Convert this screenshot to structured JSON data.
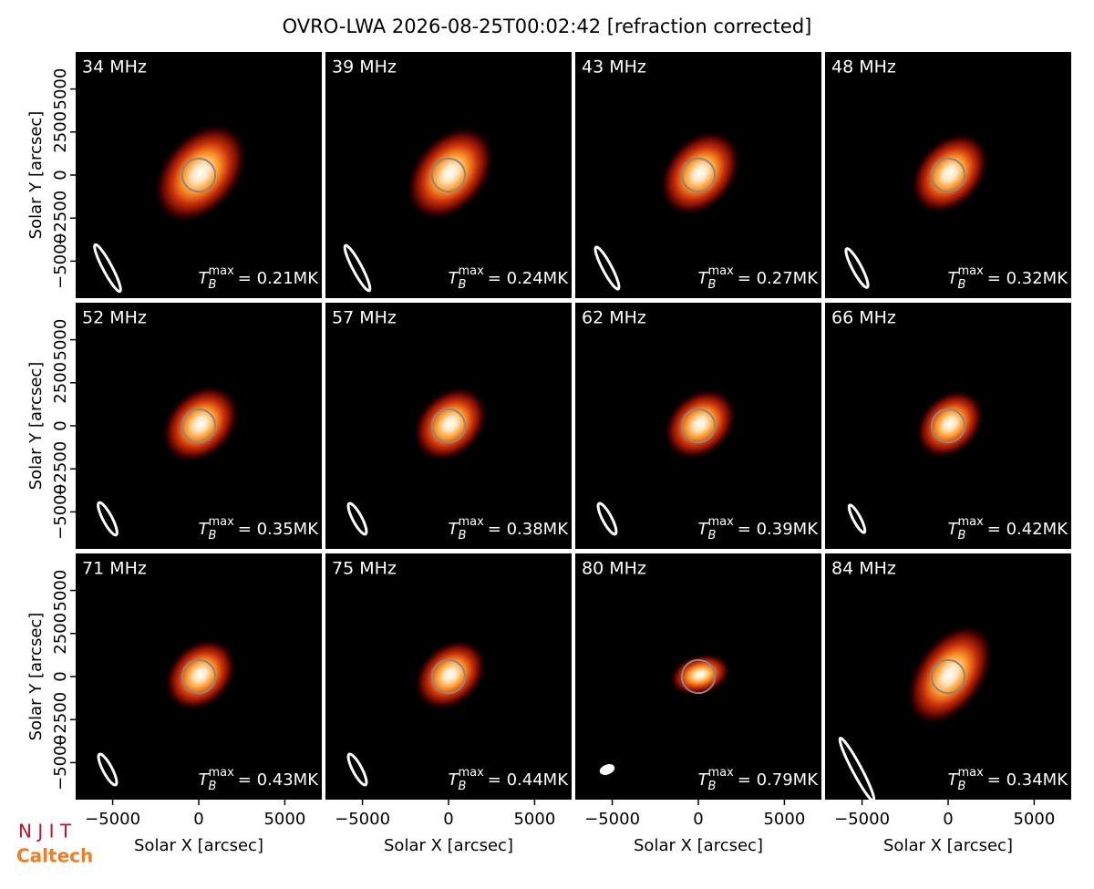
{
  "title": "OVRO-LWA 2026-08-25T00:02:42 [refraction corrected]",
  "tmax_symbol": "T",
  "tmax_sub": "B",
  "tmax_sup": "max",
  "logos": [
    "N J I T",
    "Caltech"
  ],
  "chart_data": [
    {
      "type": "image",
      "label": "34 MHz",
      "tmax": 0.21,
      "tmax_label": "= 0.21MK",
      "xlim": [
        -7150,
        7150
      ],
      "ylim": [
        -7150,
        7150
      ],
      "yticks": [
        {
          "value": -5000,
          "label": "−5000"
        },
        {
          "value": -2500,
          "label": "−2500"
        },
        0,
        2500,
        5000
      ],
      "ylabel": "Solar Y [arcsec]"
    },
    {
      "type": "image",
      "label": "39 MHz",
      "tmax": 0.24,
      "tmax_label": "= 0.24MK",
      "xlim": [
        -7150,
        7150
      ],
      "ylim": [
        -7150,
        7150
      ]
    },
    {
      "type": "image",
      "label": "43 MHz",
      "tmax": 0.27,
      "tmax_label": "= 0.27MK",
      "xlim": [
        -7150,
        7150
      ],
      "ylim": [
        -7150,
        7150
      ]
    },
    {
      "type": "image",
      "label": "48 MHz",
      "tmax": 0.32,
      "tmax_label": "= 0.32MK",
      "xlim": [
        -7150,
        7150
      ],
      "ylim": [
        -7150,
        7150
      ]
    },
    {
      "type": "image",
      "label": "52 MHz",
      "tmax": 0.35,
      "tmax_label": "= 0.35MK",
      "xlim": [
        -7150,
        7150
      ],
      "ylim": [
        -7150,
        7150
      ],
      "yticks": [
        {
          "value": -5000,
          "label": "−5000"
        },
        {
          "value": -2500,
          "label": "−2500"
        },
        0,
        2500,
        5000
      ],
      "ylabel": "Solar Y [arcsec]"
    },
    {
      "type": "image",
      "label": "57 MHz",
      "tmax": 0.38,
      "tmax_label": "= 0.38MK",
      "xlim": [
        -7150,
        7150
      ],
      "ylim": [
        -7150,
        7150
      ]
    },
    {
      "type": "image",
      "label": "62 MHz",
      "tmax": 0.39,
      "tmax_label": "= 0.39MK",
      "xlim": [
        -7150,
        7150
      ],
      "ylim": [
        -7150,
        7150
      ]
    },
    {
      "type": "image",
      "label": "66 MHz",
      "tmax": 0.42,
      "tmax_label": "= 0.42MK",
      "xlim": [
        -7150,
        7150
      ],
      "ylim": [
        -7150,
        7150
      ]
    },
    {
      "type": "image",
      "label": "71 MHz",
      "tmax": 0.43,
      "tmax_label": "= 0.43MK",
      "xlim": [
        -7150,
        7150
      ],
      "ylim": [
        -7150,
        7150
      ],
      "yticks": [
        {
          "value": -5000,
          "label": "−5000"
        },
        {
          "value": -2500,
          "label": "−2500"
        },
        0,
        2500,
        5000
      ],
      "ylabel": "Solar Y [arcsec]",
      "xticks": [
        {
          "value": -5000,
          "label": "−5000"
        },
        0,
        5000
      ],
      "xlabel": "Solar X [arcsec]"
    },
    {
      "type": "image",
      "label": "75 MHz",
      "tmax": 0.44,
      "tmax_label": "= 0.44MK",
      "xlim": [
        -7150,
        7150
      ],
      "ylim": [
        -7150,
        7150
      ],
      "xticks": [
        {
          "value": -5000,
          "label": "−5000"
        },
        0,
        5000
      ],
      "xlabel": "Solar X [arcsec]"
    },
    {
      "type": "image",
      "label": "80 MHz",
      "tmax": 0.79,
      "tmax_label": "= 0.79MK",
      "xlim": [
        -7150,
        7150
      ],
      "ylim": [
        -7150,
        7150
      ],
      "xticks": [
        {
          "value": -5000,
          "label": "−5000"
        },
        0,
        5000
      ],
      "xlabel": "Solar X [arcsec]"
    },
    {
      "type": "image",
      "label": "84 MHz",
      "tmax": 0.34,
      "tmax_label": "= 0.34MK",
      "xlim": [
        -7150,
        7150
      ],
      "ylim": [
        -7150,
        7150
      ],
      "xticks": [
        {
          "value": -5000,
          "label": "−5000"
        },
        0,
        5000
      ],
      "xlabel": "Solar X [arcsec]"
    }
  ]
}
